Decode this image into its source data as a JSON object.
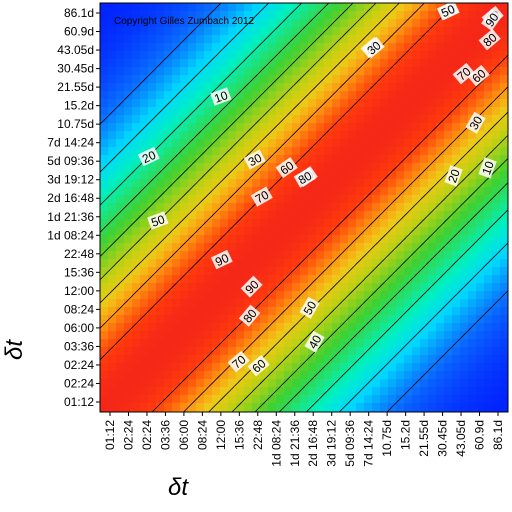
{
  "chart_data": {
    "type": "heatmap",
    "title": "",
    "copyright": "Copyright Gilles Zumbach 2012",
    "xlabel": "δt",
    "ylabel": "δt",
    "x_ticks": [
      "01:12",
      "02:24",
      "02:24",
      "03:36",
      "06:00",
      "08:24",
      "12:00",
      "15:36",
      "22:48",
      "1d 08:24",
      "1d 21:36",
      "2d 16:48",
      "3d 19:12",
      "5d 09:36",
      "7d 14:24",
      "10.75d",
      "15.2d",
      "21.55d",
      "30.45d",
      "43.05d",
      "60.9d",
      "86.1d"
    ],
    "y_ticks": [
      "86.1d",
      "60.9d",
      "43.05d",
      "30.45d",
      "21.55d",
      "15.2d",
      "10.75d",
      "7d 14:24",
      "5d 09:36",
      "3d 19:12",
      "2d 16:48",
      "1d 21:36",
      "1d 08:24",
      "22:48",
      "15:36",
      "12:00",
      "08:24",
      "06:00",
      "03:36",
      "02:24",
      "02:24",
      "01:12"
    ],
    "z_range": [
      0,
      100
    ],
    "colormap": [
      "#0018ff",
      "#0a6cff",
      "#00d8ff",
      "#00f0c0",
      "#22e070",
      "#40d030",
      "#8cd020",
      "#c8d010",
      "#f0c818",
      "#ff8a10",
      "#ff3a0c",
      "#f01e1e"
    ],
    "contour_levels": [
      10,
      20,
      30,
      40,
      50,
      60,
      70,
      80,
      90
    ],
    "contour_labels": [
      {
        "text": "10"
      },
      {
        "text": "20"
      },
      {
        "text": "30"
      },
      {
        "text": "40"
      },
      {
        "text": "50"
      },
      {
        "text": "60"
      },
      {
        "text": "70"
      },
      {
        "text": "80"
      },
      {
        "text": "80"
      },
      {
        "text": "50"
      },
      {
        "text": "60"
      },
      {
        "text": "70"
      },
      {
        "text": "90"
      },
      {
        "text": "90"
      },
      {
        "text": "90"
      },
      {
        "text": "80"
      },
      {
        "text": "70"
      },
      {
        "text": "60"
      },
      {
        "text": "50"
      },
      {
        "text": "40"
      },
      {
        "text": "20"
      },
      {
        "text": "30"
      },
      {
        "text": "10"
      },
      {
        "text": "30"
      },
      {
        "text": "50"
      },
      {
        "text": "80"
      },
      {
        "text": "80"
      }
    ]
  }
}
